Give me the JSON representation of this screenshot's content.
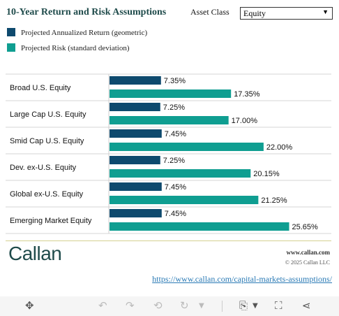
{
  "header": {
    "title": "10-Year Return and Risk Assumptions",
    "asset_class_label": "Asset Class",
    "asset_class_value": "Equity"
  },
  "legend": {
    "return_label": "Projected Annualized Return (geometric)",
    "risk_label": "Projected Risk (standard deviation)"
  },
  "colors": {
    "return": "#0e4a6e",
    "risk": "#0f9e91",
    "title": "#1f4b4b",
    "rule": "#a8a020"
  },
  "chart_data": {
    "type": "bar",
    "orientation": "horizontal",
    "categories": [
      "Broad U.S. Equity",
      "Large Cap U.S. Equity",
      "Smid Cap U.S. Equity",
      "Dev. ex-U.S. Equity",
      "Global ex-U.S. Equity",
      "Emerging Market Equity"
    ],
    "series": [
      {
        "name": "Projected Annualized Return (geometric)",
        "values": [
          7.35,
          7.25,
          7.45,
          7.25,
          7.45,
          7.45
        ],
        "labels": [
          "7.35%",
          "7.25%",
          "7.45%",
          "7.25%",
          "7.45%",
          "7.45%"
        ]
      },
      {
        "name": "Projected Risk (standard deviation)",
        "values": [
          17.35,
          17.0,
          22.0,
          20.15,
          21.25,
          25.65
        ],
        "labels": [
          "17.35%",
          "17.00%",
          "22.00%",
          "20.15%",
          "21.25%",
          "25.65%"
        ]
      }
    ],
    "xlim": [
      0,
      30
    ],
    "legend_position": "top-left"
  },
  "footer": {
    "logo": "Callan",
    "url": "www.callan.com",
    "copyright": "© 2025 Callan LLC",
    "link": "https://www.callan.com/capital-markets-assumptions/"
  },
  "toolbar": {
    "icons": [
      "move-icon",
      "undo-icon",
      "redo-icon",
      "revert-icon",
      "refresh-icon",
      "download-icon",
      "fullscreen-icon",
      "share-icon"
    ]
  }
}
